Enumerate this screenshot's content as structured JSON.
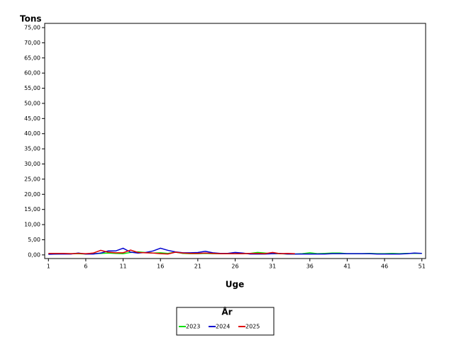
{
  "chart_data": {
    "type": "line",
    "y_label": "Tons",
    "x_label": "Uge",
    "legend_title": "År",
    "legend": "bottom",
    "grid": false,
    "x": [
      1,
      2,
      3,
      4,
      5,
      6,
      7,
      8,
      9,
      10,
      11,
      12,
      13,
      14,
      15,
      16,
      17,
      18,
      19,
      20,
      21,
      22,
      23,
      24,
      25,
      26,
      27,
      28,
      29,
      30,
      31,
      32,
      33,
      34,
      35,
      36,
      37,
      38,
      39,
      40,
      41,
      42,
      43,
      44,
      45,
      46,
      47,
      48,
      49,
      50,
      51
    ],
    "xlim": [
      0.5,
      51.5
    ],
    "xticks": [
      1,
      6,
      11,
      16,
      21,
      26,
      31,
      36,
      41,
      46,
      51
    ],
    "ylim": [
      -1.2,
      76.4
    ],
    "yticks": [
      {
        "value": 0,
        "label": "0,00"
      },
      {
        "value": 5,
        "label": "5,00"
      },
      {
        "value": 10,
        "label": "10,00"
      },
      {
        "value": 15,
        "label": "15,00"
      },
      {
        "value": 20,
        "label": "20,00"
      },
      {
        "value": 25,
        "label": "25,00"
      },
      {
        "value": 30,
        "label": "30,00"
      },
      {
        "value": 35,
        "label": "35,00"
      },
      {
        "value": 40,
        "label": "40,00"
      },
      {
        "value": 45,
        "label": "45,00"
      },
      {
        "value": 50,
        "label": "50,00"
      },
      {
        "value": 55,
        "label": "55,00"
      },
      {
        "value": 60,
        "label": "60,00"
      },
      {
        "value": 65,
        "label": "65,00"
      },
      {
        "value": 70,
        "label": "70,00"
      },
      {
        "value": 75,
        "label": "75,00"
      }
    ],
    "series": [
      {
        "name": "2023",
        "color": "#00e000",
        "values": [
          0.3,
          0.3,
          0.4,
          0.4,
          0.4,
          0.3,
          0.4,
          0.5,
          0.6,
          0.5,
          0.4,
          0.8,
          1.0,
          0.8,
          0.6,
          0.7,
          0.5,
          0.9,
          0.5,
          0.4,
          0.4,
          0.5,
          0.4,
          0.4,
          0.4,
          0.4,
          0.4,
          0.5,
          0.8,
          0.6,
          0.4,
          0.4,
          0.3,
          0.3,
          0.4,
          0.7,
          0.4,
          0.5,
          0.6,
          0.6,
          0.4,
          0.4,
          0.4,
          0.5,
          0.4,
          0.4,
          0.5,
          0.4,
          0.5,
          0.5,
          0.5
        ]
      },
      {
        "name": "2024",
        "color": "#0000d0",
        "values": [
          0.2,
          0.3,
          0.3,
          0.3,
          0.6,
          0.3,
          0.3,
          0.6,
          1.3,
          1.3,
          2.2,
          0.9,
          0.6,
          0.8,
          1.3,
          2.2,
          1.5,
          1.0,
          0.7,
          0.7,
          0.8,
          1.2,
          0.7,
          0.5,
          0.5,
          0.8,
          0.6,
          0.3,
          0.3,
          0.3,
          0.4,
          0.5,
          0.3,
          0.3,
          0.3,
          0.3,
          0.3,
          0.3,
          0.4,
          0.4,
          0.4,
          0.4,
          0.4,
          0.4,
          0.3,
          0.3,
          0.3,
          0.3,
          0.4,
          0.6,
          0.5
        ]
      },
      {
        "name": "2025",
        "color": "#e00000",
        "values": [
          0.5,
          0.5,
          0.5,
          0.4,
          0.5,
          0.4,
          0.6,
          1.5,
          0.9,
          0.7,
          0.7,
          1.6,
          0.8,
          0.7,
          0.6,
          0.4,
          0.3,
          0.9,
          0.6,
          0.5,
          0.5,
          0.6,
          0.5,
          0.4,
          0.4,
          0.4,
          0.4,
          0.5,
          0.5,
          0.4,
          0.8,
          0.4,
          0.5,
          0.4,
          null,
          null,
          null,
          null,
          null,
          null,
          null,
          null,
          null,
          null,
          null,
          null,
          null,
          null,
          null,
          null,
          null
        ]
      }
    ]
  }
}
